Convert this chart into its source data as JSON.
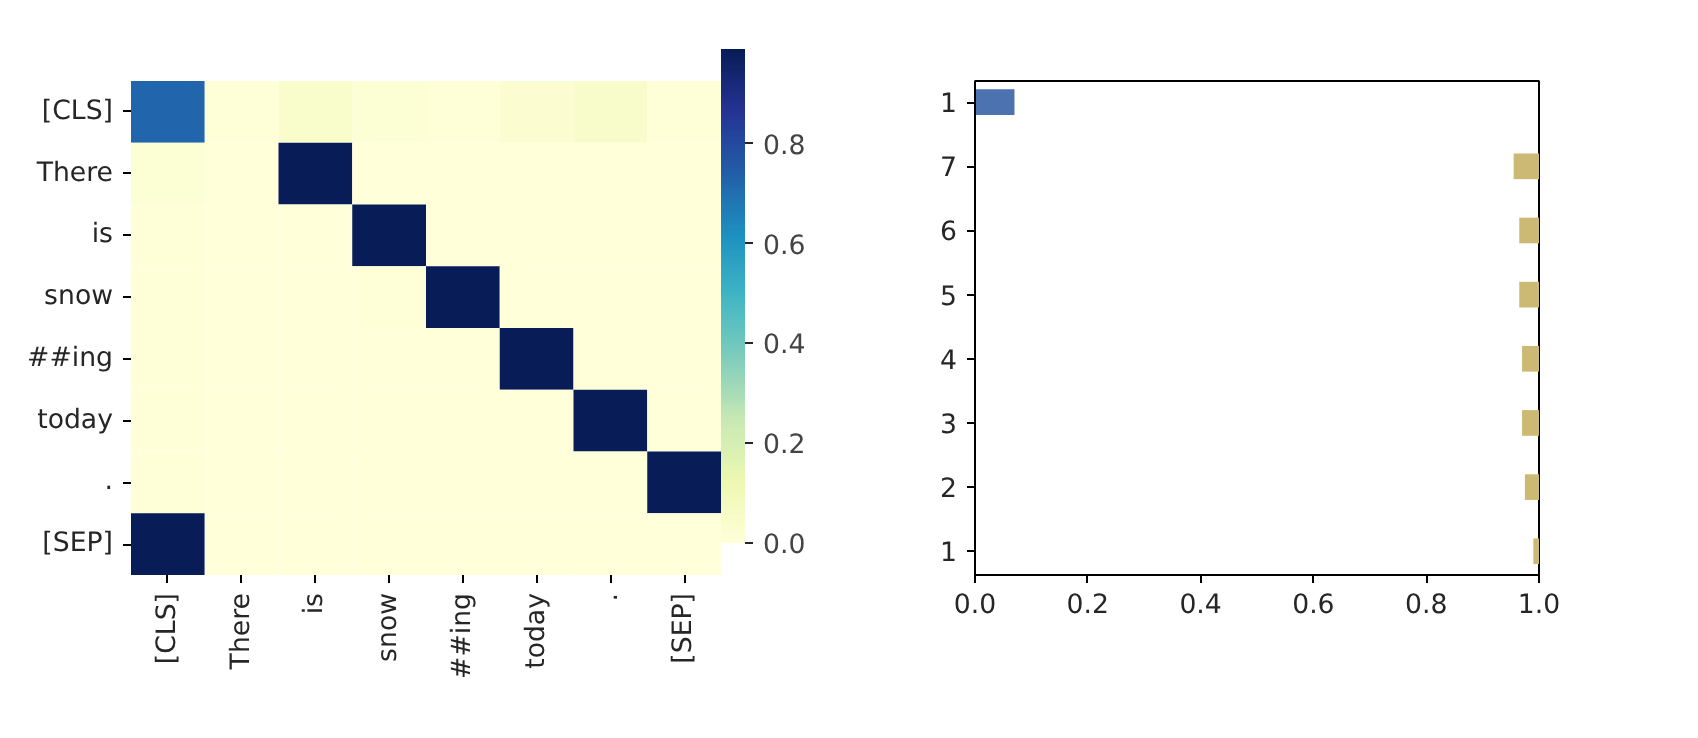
{
  "chart_data": [
    {
      "type": "heatmap",
      "categories": [
        "[CLS]",
        "There",
        "is",
        "snow",
        "##ing",
        "today",
        ".",
        "[SEP]"
      ],
      "y_categories": [
        "[CLS]",
        "There",
        "is",
        "snow",
        "##ing",
        "today",
        ".",
        "[SEP]"
      ],
      "cells": [
        [
          0.72,
          0.01,
          0.04,
          0.02,
          0.01,
          0.03,
          0.05,
          0.01
        ],
        [
          0.02,
          0.0,
          0.99,
          0.0,
          0.0,
          0.0,
          0.0,
          0.0
        ],
        [
          0.01,
          0.0,
          0.0,
          0.99,
          0.0,
          0.0,
          0.0,
          0.0
        ],
        [
          0.01,
          0.0,
          0.0,
          0.01,
          0.99,
          0.0,
          0.0,
          0.0
        ],
        [
          0.01,
          0.0,
          0.0,
          0.0,
          0.0,
          0.99,
          0.0,
          0.0
        ],
        [
          0.01,
          0.0,
          0.0,
          0.0,
          0.0,
          0.0,
          0.99,
          0.0
        ],
        [
          0.01,
          0.0,
          0.0,
          0.0,
          0.0,
          0.0,
          0.0,
          0.99
        ],
        [
          0.99,
          0.0,
          0.0,
          0.0,
          0.0,
          0.0,
          0.0,
          0.0
        ]
      ],
      "clim": [
        0,
        0.99
      ],
      "cticks": [
        {
          "value": 0,
          "label": "0.0"
        },
        0.2,
        0.4,
        0.6,
        0.8
      ]
    },
    {
      "type": "bar",
      "orientation": "horizontal",
      "categories": [
        "1",
        "7",
        "6",
        "5",
        "4",
        "3",
        "2",
        "1"
      ],
      "values": [
        0.07,
        0.045,
        0.035,
        0.035,
        0.03,
        0.03,
        0.025,
        0.01
      ],
      "base": [
        0,
        0.955,
        0.965,
        0.965,
        0.97,
        0.97,
        0.975,
        0.99
      ],
      "colors": [
        "#4c72b0",
        "#ccb974",
        "#ccb974",
        "#ccb974",
        "#ccb974",
        "#ccb974",
        "#ccb974",
        "#ccb974"
      ],
      "xlim": [
        0,
        1
      ],
      "xticks": [
        {
          "value": 0,
          "label": "0.0"
        },
        0.2,
        0.4,
        0.6,
        0.8,
        {
          "value": 1,
          "label": "1.0"
        }
      ],
      "grid": false
    }
  ]
}
